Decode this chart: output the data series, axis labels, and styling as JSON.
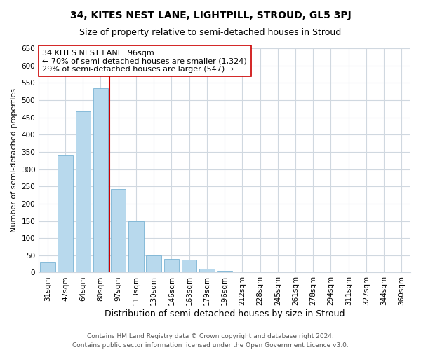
{
  "title": "34, KITES NEST LANE, LIGHTPILL, STROUD, GL5 3PJ",
  "subtitle": "Size of property relative to semi-detached houses in Stroud",
  "xlabel": "Distribution of semi-detached houses by size in Stroud",
  "ylabel": "Number of semi-detached properties",
  "categories": [
    "31sqm",
    "47sqm",
    "64sqm",
    "80sqm",
    "97sqm",
    "113sqm",
    "130sqm",
    "146sqm",
    "163sqm",
    "179sqm",
    "196sqm",
    "212sqm",
    "228sqm",
    "245sqm",
    "261sqm",
    "278sqm",
    "294sqm",
    "311sqm",
    "327sqm",
    "344sqm",
    "360sqm"
  ],
  "values": [
    30,
    340,
    468,
    535,
    243,
    150,
    50,
    39,
    38,
    12,
    4,
    2,
    2,
    1,
    0,
    0,
    0,
    2,
    0,
    0,
    2
  ],
  "bar_color": "#b8d9ed",
  "bar_edge_color": "#7ab4d4",
  "highlight_index": 4,
  "highlight_color": "#cc0000",
  "annotation_title": "34 KITES NEST LANE: 96sqm",
  "annotation_line1": "← 70% of semi-detached houses are smaller (1,324)",
  "annotation_line2": "29% of semi-detached houses are larger (547) →",
  "annotation_box_color": "#ffffff",
  "annotation_box_edge": "#cc0000",
  "ylim": [
    0,
    650
  ],
  "yticks": [
    0,
    50,
    100,
    150,
    200,
    250,
    300,
    350,
    400,
    450,
    500,
    550,
    600,
    650
  ],
  "footer1": "Contains HM Land Registry data © Crown copyright and database right 2024.",
  "footer2": "Contains public sector information licensed under the Open Government Licence v3.0.",
  "bg_color": "#ffffff",
  "grid_color": "#d0d8e0",
  "title_fontsize": 10,
  "subtitle_fontsize": 9,
  "xlabel_fontsize": 9,
  "ylabel_fontsize": 8,
  "tick_fontsize": 7.5,
  "annotation_fontsize": 8,
  "footer_fontsize": 6.5
}
